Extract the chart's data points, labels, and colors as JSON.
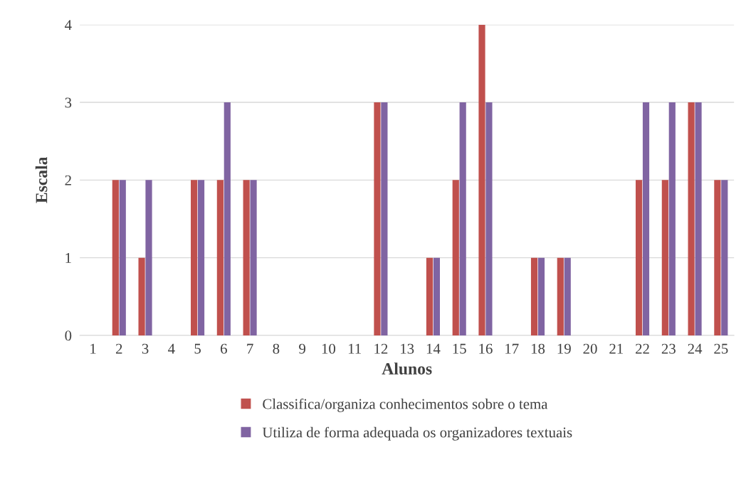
{
  "chart_data": {
    "type": "bar",
    "xlabel": "Alunos",
    "ylabel": "Escala",
    "categories": [
      "1",
      "2",
      "3",
      "4",
      "5",
      "6",
      "7",
      "8",
      "9",
      "10",
      "11",
      "12",
      "13",
      "14",
      "15",
      "16",
      "17",
      "18",
      "19",
      "20",
      "21",
      "22",
      "23",
      "24",
      "25"
    ],
    "series": [
      {
        "name": "Classifica/organiza conhecimentos sobre o tema",
        "color": "#c0504d",
        "values": [
          0,
          2,
          1,
          0,
          2,
          2,
          2,
          0,
          0,
          0,
          0,
          3,
          0,
          1,
          2,
          4,
          0,
          1,
          1,
          0,
          0,
          2,
          2,
          3,
          2
        ]
      },
      {
        "name": "Utiliza de forma adequada os organizadores textuais",
        "color": "#8064a2",
        "values": [
          0,
          2,
          2,
          0,
          2,
          3,
          2,
          0,
          0,
          0,
          0,
          3,
          0,
          1,
          3,
          3,
          0,
          1,
          1,
          0,
          0,
          3,
          3,
          3,
          2
        ]
      }
    ],
    "ylim": [
      0,
      4
    ],
    "yticks": [
      0,
      1,
      2,
      3,
      4
    ],
    "grid": "y",
    "legend": "bottom"
  }
}
